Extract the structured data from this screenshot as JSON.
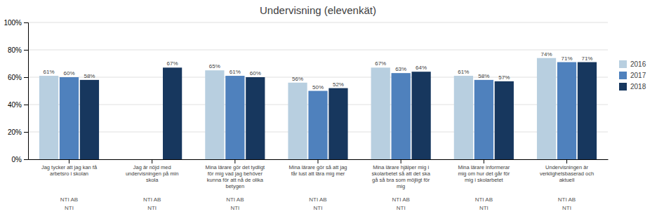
{
  "chart_data": {
    "type": "bar",
    "title": "Undervisning (elevenkät)",
    "categories": [
      "Jag tycker att jag kan få\narbetsro i skolan",
      "Jag är nöjd med\nundervisningen på min\nskola",
      "Mina lärare gör det tydligt\nför mig vad jag behöver\nkunna för att nå de olika\nbetygen",
      "Mina lärare gör så att jag\nfår lust att lära mig mer",
      "Mina lärare hjälper mig i\nskolarbetet så att det ska\ngå så bra som möjligt för\nmig",
      "Mina lärare informerar\nmig om hur det går för\nmig i skolarbetet",
      "Undervisningen är\nverklighetsbaserad och\naktuell"
    ],
    "series": [
      {
        "name": "2016",
        "color": "#b8cfe0",
        "values": [
          61,
          null,
          65,
          56,
          67,
          61,
          74
        ],
        "value_labels": [
          "61%",
          null,
          "65%",
          "56%",
          "67%",
          "61%",
          "74%"
        ]
      },
      {
        "name": "2017",
        "color": "#4f81bd",
        "values": [
          60,
          null,
          61,
          50,
          63,
          58,
          71
        ],
        "value_labels": [
          "60%",
          null,
          "61%",
          "50%",
          "63%",
          "58%",
          "71%"
        ]
      },
      {
        "name": "2018",
        "color": "#17375e",
        "values": [
          58,
          67,
          60,
          52,
          64,
          57,
          71
        ],
        "value_labels": [
          "58%",
          "67%",
          "60%",
          "52%",
          "64%",
          "57%",
          "71%"
        ]
      }
    ],
    "annotations": [
      {
        "texts": [
          "NTI AB",
          "NTI AB",
          "NTI AB",
          "NTI AB",
          "NTI AB",
          "NTI AB",
          "NTI AB"
        ]
      },
      {
        "texts": [
          "NTI",
          "NTI",
          "NTI",
          "NTI",
          "NTI",
          "NTI",
          "NTI"
        ]
      }
    ],
    "ylim": [
      0,
      100
    ],
    "yticks": [
      {
        "value": 0,
        "label": "0%"
      },
      {
        "value": 20,
        "label": "20%"
      },
      {
        "value": 40,
        "label": "40%"
      },
      {
        "value": 60,
        "label": "60%"
      },
      {
        "value": 80,
        "label": "80%"
      },
      {
        "value": 100,
        "label": "100%"
      }
    ],
    "grid": true,
    "legend": "right",
    "data_labels": true
  }
}
